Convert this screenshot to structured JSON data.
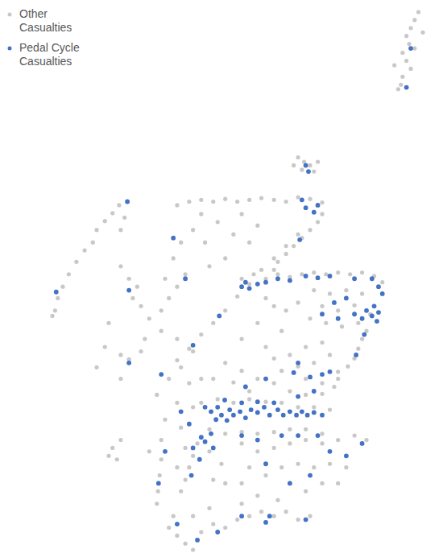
{
  "chart_data": {
    "type": "map",
    "legend": "top-left",
    "series": [
      {
        "name": "Other Casualties",
        "color": "#c8c8c8",
        "x": [
          -0.87,
          -0.94,
          -1.01,
          -1.09,
          -1.04,
          -1.16,
          -1.09,
          -1.01,
          -1.16,
          -1.19,
          -1.24,
          -1.31,
          -0.94,
          -0.79,
          -3.07,
          -2.96,
          -2.85,
          -2.78,
          -3.0,
          -2.71,
          -3.15,
          -5.28,
          -5.06,
          -4.84,
          -4.62,
          -4.4,
          -4.18,
          -3.96,
          -3.74,
          -3.51,
          -3.29,
          -3.07,
          -2.85,
          -2.63,
          -2.63,
          -2.71,
          -2.85,
          -3.0,
          -3.15,
          -3.29,
          -3.44,
          -3.51,
          -3.07,
          -3.29,
          -3.51,
          -3.74,
          -3.96,
          -4.18,
          -4.4,
          -4.62,
          -4.84,
          -5.06,
          -5.28,
          -4.1,
          -3.88,
          -3.66,
          -3.44,
          -3.22,
          -3.0,
          -2.78,
          -2.56,
          -2.34,
          -2.12,
          -1.9,
          -1.68,
          -1.53,
          -2.78,
          -2.49,
          -2.19,
          -1.9,
          -2.63,
          -2.34,
          -2.04,
          -1.75,
          -2.85,
          -2.56,
          -2.27,
          -1.97,
          -3.07,
          -3.29,
          -3.51,
          -3.66,
          -1.82,
          -1.9,
          -1.97,
          -2.04,
          -2.16,
          -2.34,
          -2.63,
          -2.93,
          -3.22,
          -2.49,
          -2.78,
          -3.07,
          -3.37,
          -2.34,
          -2.63,
          -2.93,
          -3.51,
          -3.66,
          -3.22,
          -2.93,
          -2.63,
          -2.41,
          -4.84,
          -4.54,
          -4.25,
          -3.96,
          -3.66,
          -3.37,
          -3.07,
          -2.78,
          -2.49,
          -4.69,
          -4.4,
          -4.1,
          -3.81,
          -3.51,
          -3.22,
          -2.93,
          -2.63,
          -4.4,
          -4.1,
          -3.81,
          -4.25,
          -3.96,
          -4.62,
          -3.51,
          -4.99,
          -5.21,
          -5.43,
          -5.06,
          -4.84,
          -5.65,
          -5.28,
          -4.99,
          -5.5,
          -5.21,
          -5.57,
          -5.79,
          -5.13,
          -5.94,
          -6.16,
          -6.31,
          -5.87,
          -5.57,
          -5.28,
          -5.57,
          -5.6,
          -5.63,
          -5.65,
          -6.46,
          -6.53,
          -6.38,
          -6.31,
          -6.31,
          -6.16,
          -6.01,
          -6.09,
          -5.94,
          -5.79,
          -5.57,
          -5.43,
          -5.28,
          -5.13,
          -5.35,
          -5.21,
          -4.99,
          -4.77,
          -4.69,
          -4.4,
          -4.54,
          -4.25,
          -3.96,
          -3.81,
          -4.1,
          -4.84,
          -5.5,
          -6.34,
          -6.46,
          -6.6,
          -6.75,
          -6.82,
          -6.97,
          -7.12,
          -7.26,
          -7.37,
          -7.46,
          -7.51,
          -7.56,
          -6.24,
          -6.31,
          -6.6,
          -6.75,
          -6.31,
          -6.53,
          -4.91,
          -4.99,
          -5.06,
          -5.13,
          -5.21,
          -4.69,
          -4.47,
          -4.62,
          -4.4,
          -5.28,
          -4.1,
          -3.81,
          -3.51,
          -3.22,
          -2.93,
          -2.63,
          -2.34,
          -2.04,
          -1.82,
          -3.96,
          -3.66,
          -3.37,
          -3.07,
          -2.78,
          -2.49,
          -2.19,
          -2.63,
          -2.93,
          -2.34,
          -4.1,
          -5.35,
          -5.43,
          -5.28,
          -5.13,
          -4.99,
          -4.84,
          -4.62,
          -4.4,
          -4.18,
          -3.96,
          -3.74,
          -3.51,
          -3.29,
          -3.07,
          -2.85,
          -4.1,
          -3.81,
          -3.44,
          -4.69,
          -4.99,
          -3.37,
          -3.81,
          -4.1
        ],
        "values": [
          60.76,
          60.67,
          60.58,
          60.49,
          60.4,
          60.3,
          60.21,
          60.12,
          60.03,
          59.94,
          59.89,
          60.16,
          60.35,
          60.53,
          59.12,
          59.07,
          59.03,
          58.96,
          58.98,
          59.07,
          59.03,
          58.58,
          58.62,
          58.64,
          58.62,
          58.65,
          58.62,
          58.64,
          58.66,
          58.64,
          58.62,
          58.67,
          58.65,
          58.61,
          58.48,
          58.39,
          58.3,
          58.21,
          58.12,
          58.03,
          57.94,
          57.85,
          58.25,
          58.12,
          57.98,
          57.85,
          57.69,
          57.55,
          57.39,
          57.25,
          57.12,
          56.96,
          56.83,
          57.75,
          57.8,
          57.75,
          57.8,
          57.77,
          57.8,
          57.82,
          57.8,
          57.82,
          57.8,
          57.82,
          57.78,
          57.71,
          57.62,
          57.58,
          57.62,
          57.58,
          57.44,
          57.39,
          57.45,
          57.35,
          57.3,
          57.25,
          57.21,
          57.25,
          57.48,
          57.39,
          57.44,
          57.53,
          57.16,
          57.07,
          56.96,
          56.85,
          56.76,
          56.7,
          57.03,
          56.98,
          56.89,
          56.89,
          56.8,
          56.76,
          56.71,
          56.62,
          56.57,
          56.62,
          56.85,
          56.98,
          56.48,
          56.44,
          56.45,
          56.53,
          56.35,
          56.39,
          56.35,
          56.39,
          56.36,
          56.35,
          56.3,
          56.3,
          56.27,
          56.05,
          56.0,
          56.02,
          56.0,
          56.02,
          56.05,
          56.05,
          56.0,
          56.8,
          56.71,
          56.62,
          56.58,
          56.48,
          56.62,
          56.57,
          56.93,
          56.75,
          56.62,
          56.57,
          56.62,
          56.44,
          56.35,
          56.3,
          56.16,
          56.07,
          55.93,
          55.8,
          55.84,
          56.93,
          56.84,
          56.89,
          57.07,
          57.16,
          57.07,
          55.71,
          55.53,
          55.35,
          55.21,
          55.84,
          55.75,
          55.71,
          55.93,
          57.89,
          57.75,
          57.66,
          57.53,
          57.44,
          57.3,
          57.39,
          57.53,
          57.66,
          57.8,
          57.98,
          58.16,
          58.3,
          58.16,
          57.89,
          57.98,
          58.39,
          58.25,
          58.16,
          58.35,
          58.48,
          58.48,
          57.75,
          58.58,
          58.49,
          58.4,
          58.3,
          58.16,
          58.07,
          57.94,
          57.8,
          57.66,
          57.53,
          57.39,
          57.33,
          58.44,
          58.3,
          56.98,
          56.75,
          56.62,
          57.25,
          55.89,
          55.75,
          55.62,
          55.48,
          55.35,
          55.8,
          55.66,
          55.48,
          55.44,
          55.62,
          55.89,
          55.8,
          55.84,
          55.89,
          55.93,
          55.89,
          55.93,
          55.98,
          55.93,
          55.62,
          55.53,
          55.62,
          55.66,
          55.62,
          55.66,
          55.62,
          55.44,
          55.35,
          55.44,
          55.44,
          55.07,
          54.94,
          54.85,
          54.76,
          54.69,
          54.89,
          54.98,
          54.94,
          55.03,
          55.07,
          55.12,
          55.07,
          55.12,
          55.03,
          55.07,
          55.21,
          55.3,
          55.25,
          55.16,
          55.07,
          57.16,
          57.25,
          57.07
        ]
      },
      {
        "name": "Pedal Cycle Casualties",
        "color": "#4472c4",
        "x": [
          -1.01,
          -1.09,
          -2.93,
          -2.88,
          -3.0,
          -2.93,
          -2.71,
          -2.78,
          -3.04,
          -4.51,
          -4.99,
          -4.1,
          -4.03,
          -3.96,
          -3.81,
          -3.66,
          -3.44,
          -3.22,
          -2.93,
          -2.71,
          -2.49,
          -2.04,
          -1.72,
          -1.6,
          -1.68,
          -1.6,
          -1.72,
          -1.63,
          -1.82,
          -1.9,
          -2.04,
          -2.19,
          -2.41,
          -2.34,
          -2.63,
          -1.53,
          -1.86,
          -2.01,
          -2.49,
          -2.63,
          -2.85,
          -3.15,
          -3.07,
          -2.78,
          -3.07,
          -4.77,
          -4.66,
          -4.54,
          -4.47,
          -4.32,
          -4.25,
          -4.13,
          -4.03,
          -3.93,
          -3.81,
          -3.69,
          -3.59,
          -3.44,
          -3.34,
          -3.22,
          -3.1,
          -3.0,
          -2.9,
          -2.78,
          -2.63,
          -4.37,
          -4.57,
          -4.1,
          -3.81,
          -3.51,
          -4.41,
          -4.66,
          -4.84,
          -3.66,
          -4.03,
          -5.21,
          -5.57,
          -6.16,
          -5.06,
          -5.62,
          -5.5,
          -5.35,
          -5.13,
          -6.16,
          -6.19,
          -7.49,
          -4.99,
          -4.87,
          -5.02,
          -4.77,
          -4.62,
          -4.1,
          -3.81,
          -3.37,
          -3.07,
          -2.71,
          -2.49,
          -2.19,
          -2.85,
          -3.22,
          -1.9,
          -3.66,
          -3.59,
          -3.66,
          -4.91,
          -5.28,
          -4.54,
          -2.93,
          -4.1
        ],
        "values": [
          60.35,
          59.91,
          59.03,
          58.96,
          58.64,
          58.55,
          58.58,
          58.5,
          58.19,
          57.33,
          57.0,
          57.66,
          57.71,
          57.64,
          57.69,
          57.71,
          57.75,
          57.73,
          57.78,
          57.76,
          57.78,
          57.75,
          57.75,
          57.66,
          57.44,
          57.37,
          57.33,
          57.27,
          57.39,
          57.3,
          57.35,
          57.53,
          57.48,
          57.3,
          57.35,
          57.58,
          57.12,
          56.89,
          56.7,
          56.67,
          56.64,
          56.69,
          56.8,
          56.48,
          56.42,
          56.3,
          56.25,
          56.3,
          56.21,
          56.27,
          56.21,
          56.25,
          56.18,
          56.27,
          56.24,
          56.3,
          56.21,
          56.27,
          56.21,
          56.25,
          56.21,
          56.25,
          56.21,
          56.24,
          56.21,
          56.15,
          56.16,
          56.35,
          56.36,
          56.35,
          56.38,
          56.0,
          55.96,
          56.62,
          56.53,
          56.25,
          56.67,
          56.8,
          56.11,
          55.44,
          55.8,
          58.21,
          57.75,
          57.62,
          58.62,
          57.6,
          55.84,
          55.71,
          55.53,
          55.91,
          55.84,
          55.98,
          55.93,
          55.98,
          55.98,
          55.98,
          55.8,
          55.75,
          55.53,
          55.44,
          55.89,
          55.66,
          55.07,
          55.0,
          54.8,
          54.98,
          54.89,
          55.03,
          55.07
        ]
      }
    ]
  }
}
